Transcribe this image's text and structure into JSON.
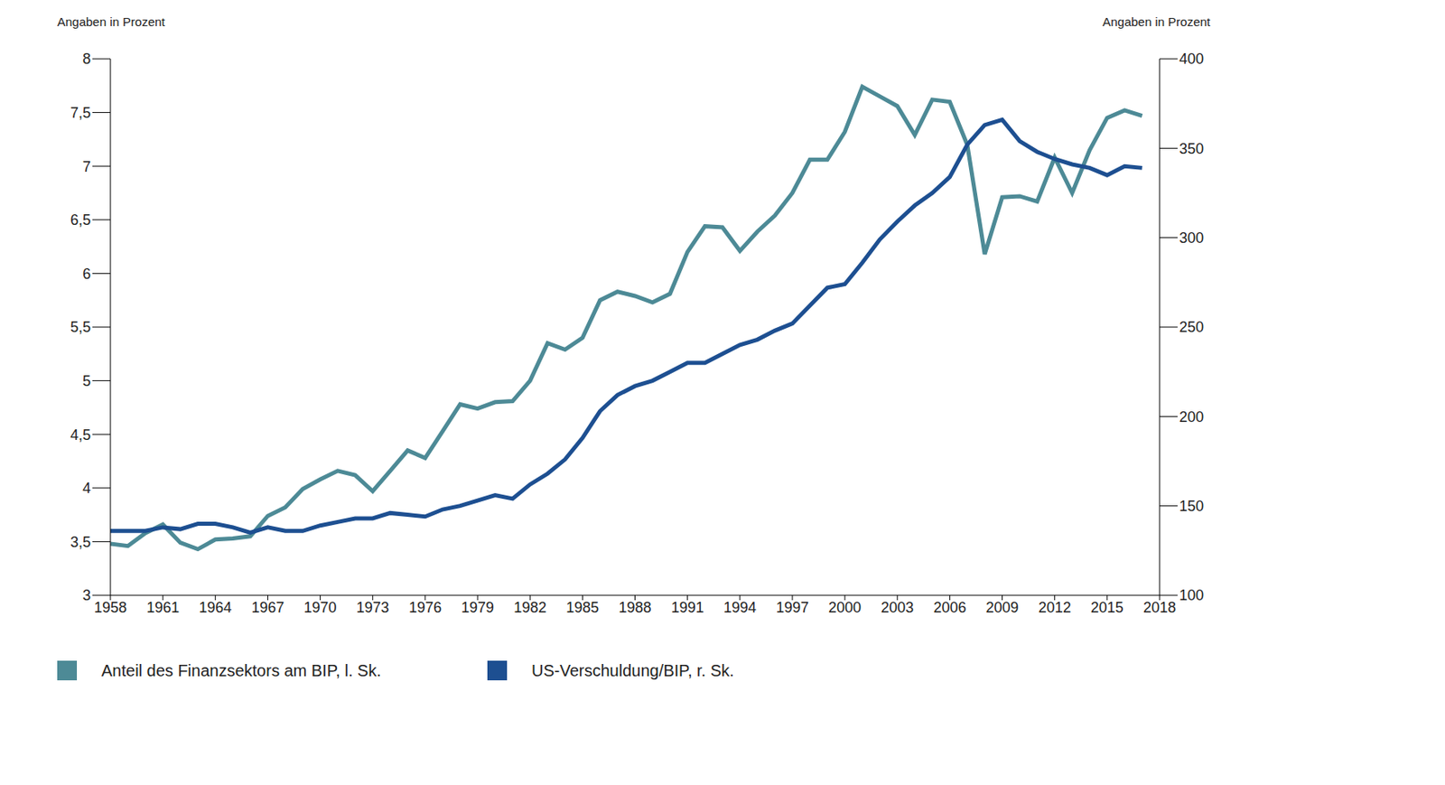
{
  "chart_data": {
    "type": "line",
    "y_label": "Angaben in Prozent",
    "y2_label": "Angaben in Prozent",
    "x": [
      1958,
      1959,
      1960,
      1961,
      1962,
      1963,
      1964,
      1965,
      1966,
      1967,
      1968,
      1969,
      1970,
      1971,
      1972,
      1973,
      1974,
      1975,
      1976,
      1977,
      1978,
      1979,
      1980,
      1981,
      1982,
      1983,
      1984,
      1985,
      1986,
      1987,
      1988,
      1989,
      1990,
      1991,
      1992,
      1993,
      1994,
      1995,
      1996,
      1997,
      1998,
      1999,
      2000,
      2001,
      2002,
      2003,
      2004,
      2005,
      2006,
      2007,
      2008,
      2009,
      2010,
      2011,
      2012,
      2013,
      2014,
      2015,
      2016,
      2017
    ],
    "xlim": [
      1958,
      2018
    ],
    "xticks": [
      1958,
      1961,
      1964,
      1967,
      1970,
      1973,
      1976,
      1979,
      1982,
      1985,
      1988,
      1991,
      1994,
      1997,
      2000,
      2003,
      2006,
      2009,
      2012,
      2015,
      2018
    ],
    "ylim": [
      3,
      8
    ],
    "yticks": [
      3,
      {
        "value": 3.5,
        "label": "3,5"
      },
      4,
      {
        "value": 4.5,
        "label": "4,5"
      },
      5,
      {
        "value": 5.5,
        "label": "5,5"
      },
      6,
      {
        "value": 6.5,
        "label": "6,5"
      },
      7,
      {
        "value": 7.5,
        "label": "7,5"
      },
      8
    ],
    "y2lim": [
      100,
      400
    ],
    "y2ticks": [
      100,
      150,
      200,
      250,
      300,
      350,
      400
    ],
    "grid": false,
    "legend": "bottom",
    "series": [
      {
        "name": "Anteil des Finanzsektors am BIP, l. Sk.",
        "color": "#4d8a96",
        "values": [
          3.48,
          3.46,
          3.58,
          3.66,
          3.49,
          3.43,
          3.52,
          3.53,
          3.55,
          3.74,
          3.82,
          3.99,
          4.08,
          4.16,
          4.12,
          3.97,
          4.16,
          4.35,
          4.28,
          4.53,
          4.78,
          4.74,
          4.8,
          4.81,
          5.0,
          5.35,
          5.29,
          5.4,
          5.75,
          5.83,
          5.79,
          5.73,
          5.81,
          6.2,
          6.44,
          6.43,
          6.21,
          6.39,
          6.54,
          6.75,
          7.06,
          7.06,
          7.32,
          7.74,
          7.65,
          7.56,
          7.29,
          7.62,
          7.6,
          7.2,
          6.18,
          6.71,
          6.72,
          6.67,
          7.08,
          6.75,
          7.15,
          7.45,
          7.52,
          7.47
        ]
      },
      {
        "name": "US-Verschuldung/BIP, r. Sk.",
        "color": "#1d4f91",
        "axis": "y2",
        "values": [
          136,
          136,
          136,
          138,
          137,
          140,
          140,
          138,
          135,
          138,
          136,
          136,
          139,
          141,
          143,
          143,
          146,
          145,
          144,
          148,
          150,
          153,
          156,
          154,
          162,
          168,
          176,
          188,
          203,
          212,
          217,
          220,
          225,
          230,
          230,
          235,
          240,
          243,
          248,
          252,
          262,
          272,
          274,
          286,
          299,
          309,
          318,
          325,
          334,
          352,
          363,
          366,
          354,
          348,
          344,
          341,
          339,
          335,
          340,
          339
        ]
      }
    ]
  }
}
